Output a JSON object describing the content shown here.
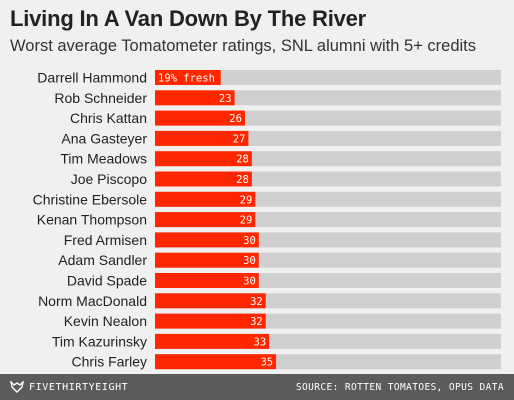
{
  "colors": {
    "bar": "#ff2700",
    "track": "#cfcfcf",
    "background": "#f0f0f0",
    "footer": "#5b5b5b"
  },
  "footer": {
    "brand": "FIVETHIRTYEIGHT",
    "brand_icon": "fivethirtyeight-fox-icon",
    "source": "SOURCE: ROTTEN TOMATOES, OPUS DATA"
  },
  "chart_data": {
    "type": "bar",
    "orientation": "horizontal",
    "title": "Living In A Van Down By The River",
    "subtitle": "Worst average Tomatometer ratings, SNL alumni with 5+ credits",
    "xlim": [
      0,
      100
    ],
    "value_suffix_first": "% fresh",
    "categories": [
      "Darrell Hammond",
      "Rob Schneider",
      "Chris Kattan",
      "Ana Gasteyer",
      "Tim Meadows",
      "Joe Piscopo",
      "Christine Ebersole",
      "Kenan Thompson",
      "Fred Armisen",
      "Adam Sandler",
      "David Spade",
      "Norm MacDonald",
      "Kevin Nealon",
      "Tim Kazurinsky",
      "Chris Farley"
    ],
    "values": [
      19,
      23,
      26,
      27,
      28,
      28,
      29,
      29,
      30,
      30,
      30,
      32,
      32,
      33,
      35
    ],
    "data_labels": [
      "19% fresh",
      "23",
      "26",
      "27",
      "28",
      "28",
      "29",
      "29",
      "30",
      "30",
      "30",
      "32",
      "32",
      "33",
      "35"
    ]
  }
}
